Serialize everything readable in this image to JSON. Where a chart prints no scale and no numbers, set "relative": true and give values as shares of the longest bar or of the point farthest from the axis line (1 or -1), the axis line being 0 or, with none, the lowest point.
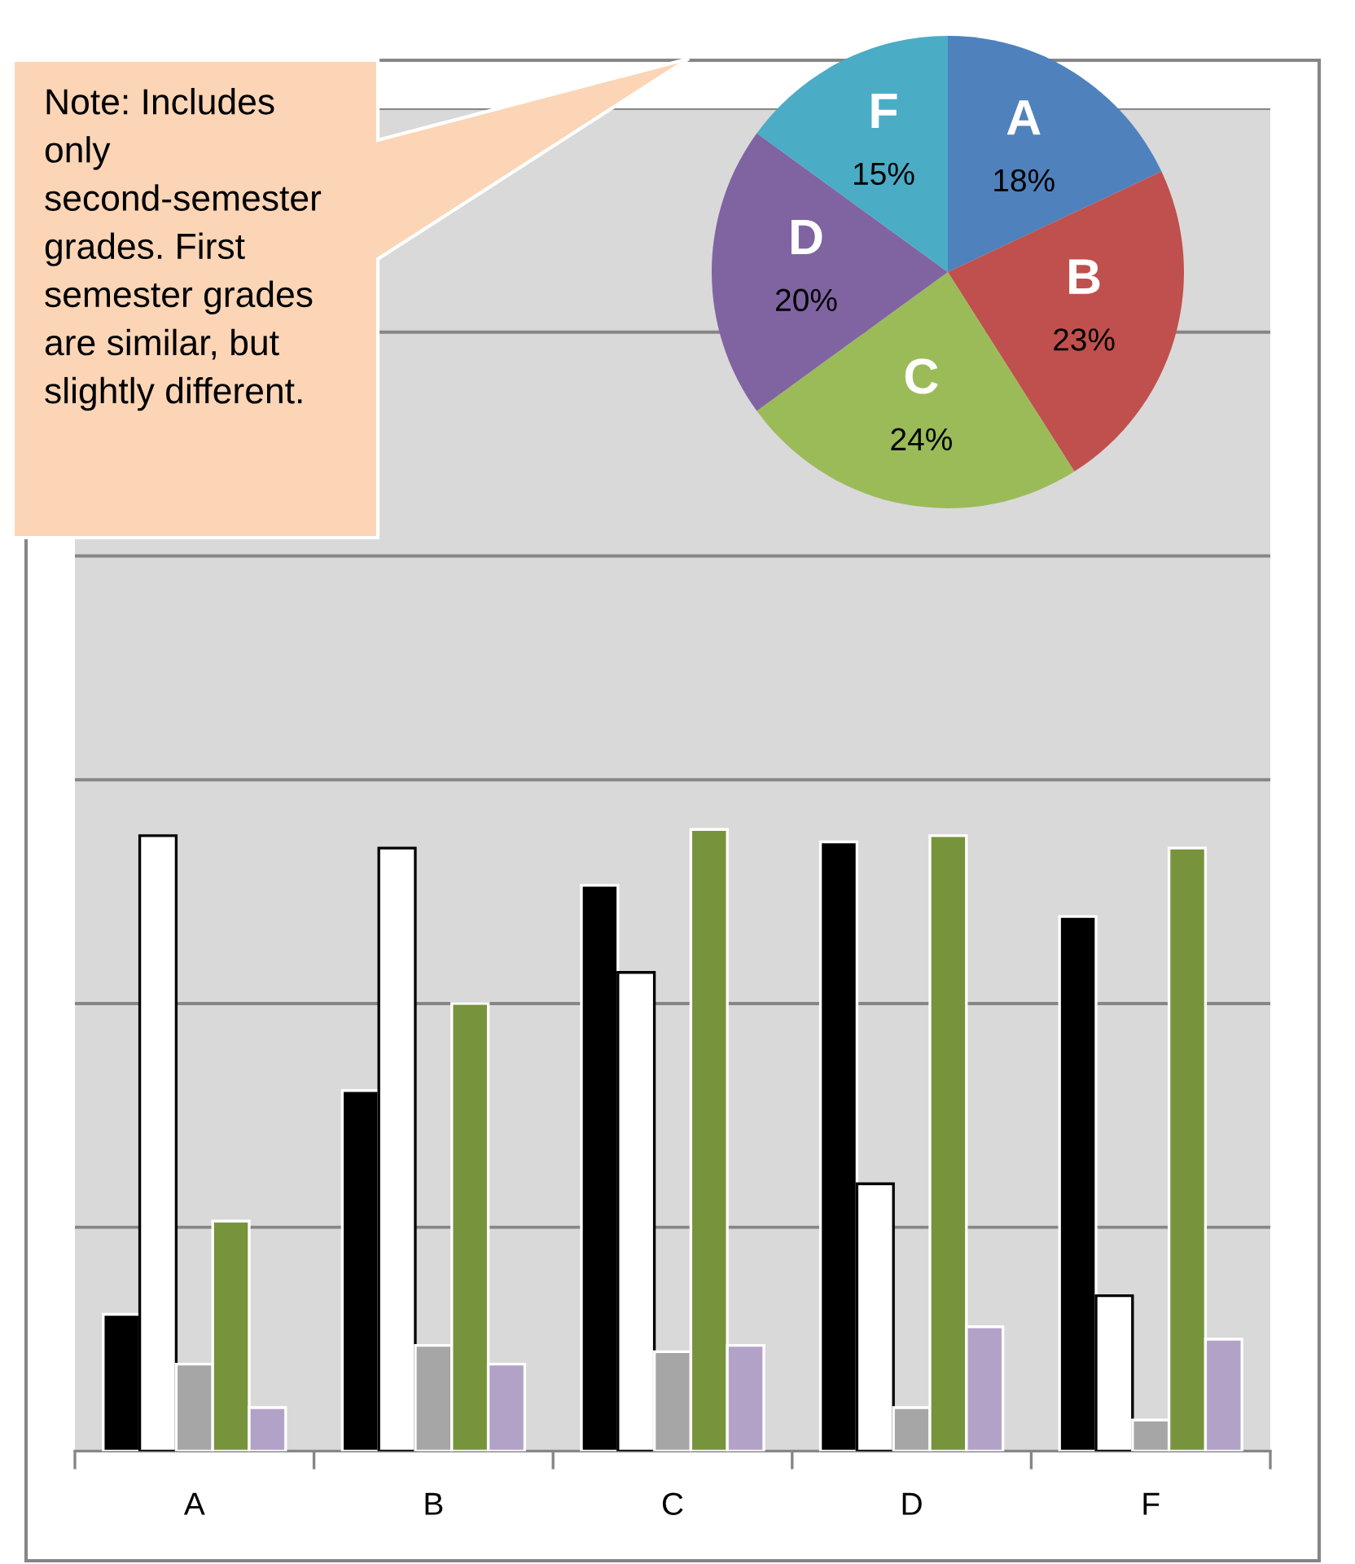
{
  "chart_data": [
    {
      "type": "bar",
      "categories": [
        "A",
        "B",
        "C",
        "D",
        "F"
      ],
      "relative": true,
      "ref_lines": [
        {
          "axis": "y",
          "value": 0.36,
          "color": "#868686"
        },
        {
          "axis": "y",
          "value": 0.72,
          "color": "#868686"
        },
        {
          "axis": "y",
          "value": 1.08,
          "color": "#868686"
        },
        {
          "axis": "y",
          "value": 1.44,
          "color": "#868686"
        },
        {
          "axis": "y",
          "value": 1.8,
          "color": "#868686"
        },
        {
          "axis": "y",
          "value": 2.16,
          "color": "#868686"
        }
      ],
      "annotations": [
        "Note: Includes only second-semester grades. First semester grades are similar, but slightly different."
      ],
      "series": [
        {
          "color": "#000000",
          "values": [
            0.22,
            0.58,
            0.91,
            0.98,
            0.86
          ]
        },
        {
          "color": "#ffffff",
          "values": [
            0.99,
            0.97,
            0.77,
            0.43,
            0.25
          ]
        },
        {
          "color": "#a6a6a6",
          "values": [
            0.14,
            0.17,
            0.16,
            0.07,
            0.05
          ]
        },
        {
          "color": "#77933c",
          "values": [
            0.37,
            0.72,
            1,
            0.99,
            0.97
          ]
        },
        {
          "color": "#b3a2c7",
          "values": [
            0.07,
            0.14,
            0.17,
            0.2,
            0.18
          ]
        }
      ]
    },
    {
      "type": "pie",
      "categories": [
        "A",
        "B",
        "C",
        "D",
        "F"
      ],
      "values": [
        18,
        23,
        24,
        20,
        15
      ],
      "colors": [
        "#4f81bd",
        "#c0504d",
        "#9bbb59",
        "#8064a2",
        "#4bacc6"
      ],
      "value_labels": [
        "18%",
        "23%",
        "24%",
        "20%",
        "15%"
      ]
    }
  ]
}
